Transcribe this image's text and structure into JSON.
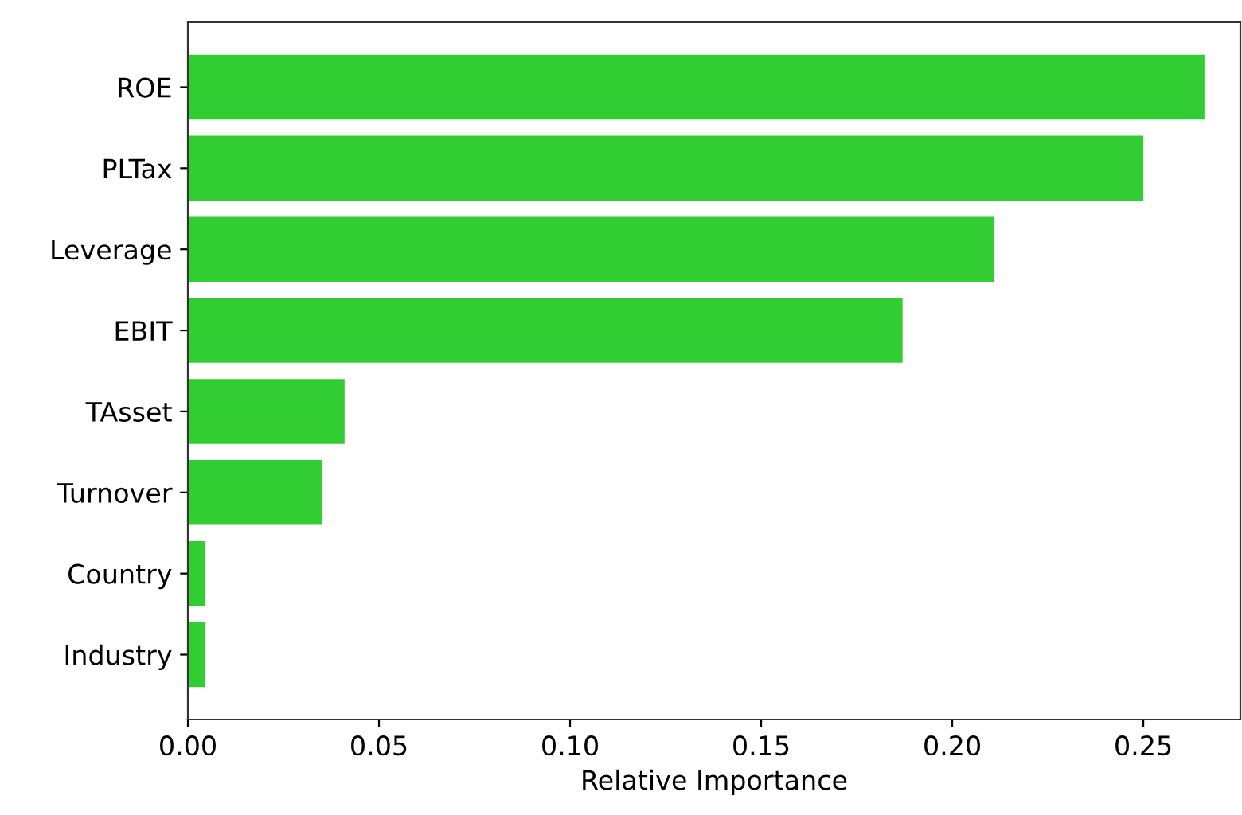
{
  "chart_data": {
    "type": "bar",
    "orientation": "horizontal",
    "xlabel": "Relative Importance",
    "categories": [
      "ROE",
      "PLTax",
      "Leverage",
      "EBIT",
      "TAsset",
      "Turnover",
      "Country",
      "Industry"
    ],
    "values": [
      0.266,
      0.25,
      0.211,
      0.187,
      0.041,
      0.035,
      0.0046,
      0.0046
    ],
    "color": "#32cd32",
    "xlim": [
      0,
      0.2754
    ],
    "xticks": [
      {
        "value": 0,
        "label": "0.00"
      },
      {
        "value": 0.05,
        "label": "0.05"
      },
      {
        "value": 0.1,
        "label": "0.10"
      },
      {
        "value": 0.15,
        "label": "0.15"
      },
      {
        "value": 0.2,
        "label": "0.20"
      },
      {
        "value": 0.25,
        "label": "0.25"
      }
    ],
    "grid": false
  }
}
